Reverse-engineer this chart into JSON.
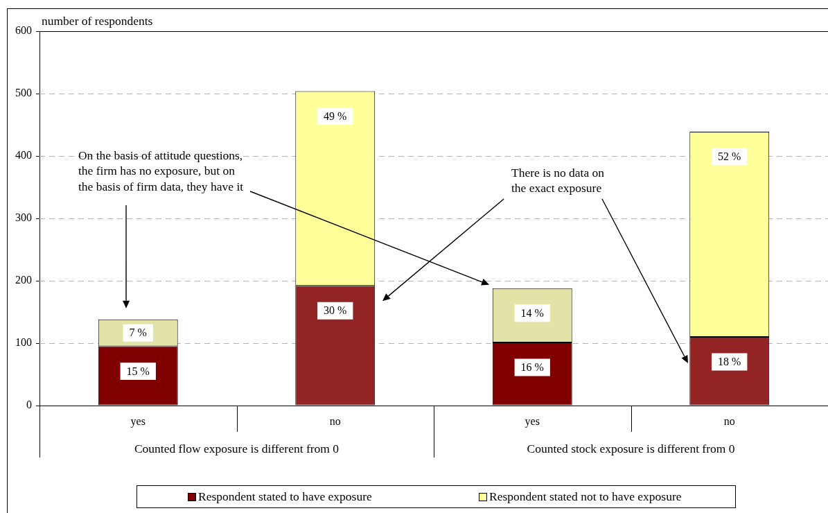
{
  "chart_data": {
    "type": "bar",
    "stacked": true,
    "categories": [
      "yes",
      "no",
      "yes",
      "no"
    ],
    "ylabel": "number of respondents",
    "ylim": [
      0,
      600
    ],
    "yticks": [
      0,
      100,
      200,
      300,
      400,
      500,
      600
    ],
    "grid": "y",
    "legend": "bottom",
    "series": [
      {
        "name": "Respondent stated to have exposure",
        "color": "#800000",
        "colors": [
          "#800000",
          "#922424",
          "#800000",
          "#922424"
        ],
        "values": [
          95,
          192,
          101,
          110
        ]
      },
      {
        "name": "Respondent stated not to have exposure",
        "color": "#ffff99",
        "colors": [
          "#e3e3a8",
          "#ffff99",
          "#e3e3a8",
          "#ffff99"
        ],
        "values": [
          43,
          312,
          87,
          329
        ]
      }
    ],
    "annotations": [
      "On the basis of attitude questions,\nthe firm has no exposure, but on\nthe basis of firm data, they have it",
      "There is no data on\nthe exact exposure",
      "15 %",
      "30 %",
      "16 %",
      "18 %",
      "7 %",
      "49 %",
      "14 %",
      "52 %",
      "Counted flow exposure is different from 0",
      "Counted stock exposure is different from 0"
    ]
  }
}
